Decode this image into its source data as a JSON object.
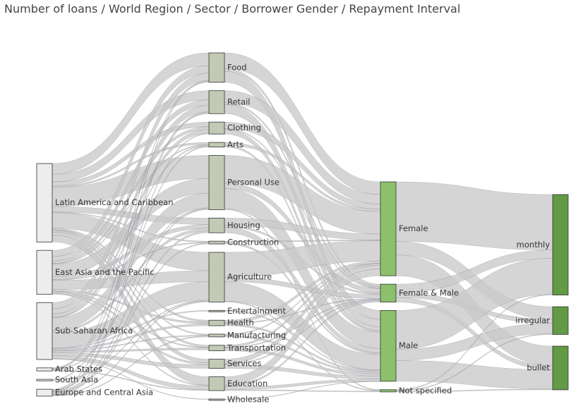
{
  "chart_data": {
    "type": "sankey",
    "title": "Number of loans / World Region / Sector / Borrower Gender / Repayment Interval",
    "colors": {
      "link": "#c9c9c9",
      "node_stroke": "#333333",
      "region_fill": "#ededed",
      "sector_fill": "#c2cab6",
      "gender_fill": "#8cc06c",
      "interval_fill": "#629a45"
    },
    "nodes": [
      {
        "id": "lac",
        "label": "Latin America and Caribbean",
        "level": 0,
        "value": 102
      },
      {
        "id": "eap",
        "label": "East Asia and the Pacific",
        "level": 0,
        "value": 57
      },
      {
        "id": "ssa",
        "label": "Sub-Saharan Africa",
        "level": 0,
        "value": 74
      },
      {
        "id": "arab",
        "label": "Arab States",
        "level": 0,
        "value": 4
      },
      {
        "id": "sa",
        "label": "South Asia",
        "level": 0,
        "value": 2
      },
      {
        "id": "eca",
        "label": "Europe and Central Asia",
        "level": 0,
        "value": 9
      },
      {
        "id": "food",
        "label": "Food",
        "level": 1,
        "value": 32
      },
      {
        "id": "retail",
        "label": "Retail",
        "level": 1,
        "value": 25
      },
      {
        "id": "clothing",
        "label": "Clothing",
        "level": 1,
        "value": 13
      },
      {
        "id": "arts",
        "label": "Arts",
        "level": 1,
        "value": 5
      },
      {
        "id": "personal",
        "label": "Personal Use",
        "level": 1,
        "value": 59
      },
      {
        "id": "housing",
        "label": "Housing",
        "level": 1,
        "value": 16
      },
      {
        "id": "construction",
        "label": "Construction",
        "level": 1,
        "value": 3
      },
      {
        "id": "agriculture",
        "label": "Agriculture",
        "level": 1,
        "value": 54
      },
      {
        "id": "entertainment",
        "label": "Entertainment",
        "level": 1,
        "value": 1
      },
      {
        "id": "health",
        "label": "Health",
        "level": 1,
        "value": 6
      },
      {
        "id": "manufacturing",
        "label": "Manufacturing",
        "level": 1,
        "value": 3
      },
      {
        "id": "transportation",
        "label": "Transportation",
        "level": 1,
        "value": 6
      },
      {
        "id": "services",
        "label": "Services",
        "level": 1,
        "value": 10
      },
      {
        "id": "education",
        "label": "Education",
        "level": 1,
        "value": 15
      },
      {
        "id": "wholesale",
        "label": "Wholesale",
        "level": 1,
        "value": 0.5
      },
      {
        "id": "female",
        "label": "Female",
        "level": 2,
        "value": 126
      },
      {
        "id": "femalemale",
        "label": "Female & Male",
        "level": 2,
        "value": 24
      },
      {
        "id": "male",
        "label": "Male",
        "level": 2,
        "value": 95
      },
      {
        "id": "notspec",
        "label": "Not specified",
        "level": 2,
        "value": 3
      },
      {
        "id": "monthly",
        "label": "monthly",
        "level": 3,
        "value": 145
      },
      {
        "id": "irregular",
        "label": "irregular",
        "level": 3,
        "value": 40
      },
      {
        "id": "bullet",
        "label": "bullet",
        "level": 3,
        "value": 63
      }
    ],
    "links": [
      {
        "source": "lac",
        "target": "food",
        "value": 14
      },
      {
        "source": "lac",
        "target": "retail",
        "value": 10
      },
      {
        "source": "lac",
        "target": "clothing",
        "value": 5
      },
      {
        "source": "lac",
        "target": "arts",
        "value": 2
      },
      {
        "source": "lac",
        "target": "personal",
        "value": 25
      },
      {
        "source": "lac",
        "target": "housing",
        "value": 7
      },
      {
        "source": "lac",
        "target": "construction",
        "value": 1
      },
      {
        "source": "lac",
        "target": "agriculture",
        "value": 20
      },
      {
        "source": "lac",
        "target": "health",
        "value": 2
      },
      {
        "source": "lac",
        "target": "manufacturing",
        "value": 1
      },
      {
        "source": "lac",
        "target": "transportation",
        "value": 2
      },
      {
        "source": "lac",
        "target": "services",
        "value": 4
      },
      {
        "source": "lac",
        "target": "education",
        "value": 9
      },
      {
        "source": "eap",
        "target": "food",
        "value": 8
      },
      {
        "source": "eap",
        "target": "retail",
        "value": 6
      },
      {
        "source": "eap",
        "target": "clothing",
        "value": 3
      },
      {
        "source": "eap",
        "target": "arts",
        "value": 1
      },
      {
        "source": "eap",
        "target": "personal",
        "value": 16
      },
      {
        "source": "eap",
        "target": "housing",
        "value": 4
      },
      {
        "source": "eap",
        "target": "construction",
        "value": 1
      },
      {
        "source": "eap",
        "target": "agriculture",
        "value": 12
      },
      {
        "source": "eap",
        "target": "health",
        "value": 2
      },
      {
        "source": "eap",
        "target": "transportation",
        "value": 1
      },
      {
        "source": "eap",
        "target": "services",
        "value": 2
      },
      {
        "source": "eap",
        "target": "education",
        "value": 1
      },
      {
        "source": "ssa",
        "target": "food",
        "value": 8
      },
      {
        "source": "ssa",
        "target": "retail",
        "value": 7
      },
      {
        "source": "ssa",
        "target": "clothing",
        "value": 4
      },
      {
        "source": "ssa",
        "target": "arts",
        "value": 1
      },
      {
        "source": "ssa",
        "target": "personal",
        "value": 16
      },
      {
        "source": "ssa",
        "target": "housing",
        "value": 3
      },
      {
        "source": "ssa",
        "target": "agriculture",
        "value": 20
      },
      {
        "source": "ssa",
        "target": "entertainment",
        "value": 1
      },
      {
        "source": "ssa",
        "target": "health",
        "value": 2
      },
      {
        "source": "ssa",
        "target": "manufacturing",
        "value": 1
      },
      {
        "source": "ssa",
        "target": "transportation",
        "value": 2
      },
      {
        "source": "ssa",
        "target": "services",
        "value": 4
      },
      {
        "source": "ssa",
        "target": "education",
        "value": 4
      },
      {
        "source": "ssa",
        "target": "wholesale",
        "value": 0.5
      },
      {
        "source": "arab",
        "target": "food",
        "value": 1
      },
      {
        "source": "arab",
        "target": "retail",
        "value": 1
      },
      {
        "source": "arab",
        "target": "personal",
        "value": 1
      },
      {
        "source": "arab",
        "target": "education",
        "value": 1
      },
      {
        "source": "sa",
        "target": "retail",
        "value": 1
      },
      {
        "source": "sa",
        "target": "agriculture",
        "value": 1
      },
      {
        "source": "eca",
        "target": "food",
        "value": 1
      },
      {
        "source": "eca",
        "target": "clothing",
        "value": 1
      },
      {
        "source": "eca",
        "target": "arts",
        "value": 1
      },
      {
        "source": "eca",
        "target": "personal",
        "value": 1
      },
      {
        "source": "eca",
        "target": "housing",
        "value": 2
      },
      {
        "source": "eca",
        "target": "construction",
        "value": 1
      },
      {
        "source": "eca",
        "target": "agriculture",
        "value": 1
      },
      {
        "source": "eca",
        "target": "manufacturing",
        "value": 1
      },
      {
        "source": "food",
        "target": "female",
        "value": 17
      },
      {
        "source": "food",
        "target": "femalemale",
        "value": 3
      },
      {
        "source": "food",
        "target": "male",
        "value": 12
      },
      {
        "source": "retail",
        "target": "female",
        "value": 13
      },
      {
        "source": "retail",
        "target": "femalemale",
        "value": 2
      },
      {
        "source": "retail",
        "target": "male",
        "value": 10
      },
      {
        "source": "clothing",
        "target": "female",
        "value": 7
      },
      {
        "source": "clothing",
        "target": "femalemale",
        "value": 1
      },
      {
        "source": "clothing",
        "target": "male",
        "value": 5
      },
      {
        "source": "arts",
        "target": "female",
        "value": 3
      },
      {
        "source": "arts",
        "target": "male",
        "value": 2
      },
      {
        "source": "personal",
        "target": "female",
        "value": 30
      },
      {
        "source": "personal",
        "target": "femalemale",
        "value": 6
      },
      {
        "source": "personal",
        "target": "male",
        "value": 22
      },
      {
        "source": "personal",
        "target": "notspec",
        "value": 1
      },
      {
        "source": "housing",
        "target": "female",
        "value": 8
      },
      {
        "source": "housing",
        "target": "femalemale",
        "value": 2
      },
      {
        "source": "housing",
        "target": "male",
        "value": 6
      },
      {
        "source": "construction",
        "target": "female",
        "value": 1
      },
      {
        "source": "construction",
        "target": "male",
        "value": 2
      },
      {
        "source": "agriculture",
        "target": "female",
        "value": 27
      },
      {
        "source": "agriculture",
        "target": "femalemale",
        "value": 5
      },
      {
        "source": "agriculture",
        "target": "male",
        "value": 21
      },
      {
        "source": "agriculture",
        "target": "notspec",
        "value": 1
      },
      {
        "source": "entertainment",
        "target": "male",
        "value": 1
      },
      {
        "source": "health",
        "target": "female",
        "value": 3
      },
      {
        "source": "health",
        "target": "femalemale",
        "value": 1
      },
      {
        "source": "health",
        "target": "male",
        "value": 2
      },
      {
        "source": "manufacturing",
        "target": "female",
        "value": 1
      },
      {
        "source": "manufacturing",
        "target": "male",
        "value": 2
      },
      {
        "source": "transportation",
        "target": "female",
        "value": 2
      },
      {
        "source": "transportation",
        "target": "femalemale",
        "value": 1
      },
      {
        "source": "transportation",
        "target": "male",
        "value": 3
      },
      {
        "source": "services",
        "target": "female",
        "value": 5
      },
      {
        "source": "services",
        "target": "femalemale",
        "value": 1
      },
      {
        "source": "services",
        "target": "male",
        "value": 4
      },
      {
        "source": "education",
        "target": "female",
        "value": 9
      },
      {
        "source": "education",
        "target": "femalemale",
        "value": 2
      },
      {
        "source": "education",
        "target": "male",
        "value": 3
      },
      {
        "source": "education",
        "target": "notspec",
        "value": 1
      },
      {
        "source": "wholesale",
        "target": "male",
        "value": 0.5
      },
      {
        "source": "female",
        "target": "monthly",
        "value": 80
      },
      {
        "source": "female",
        "target": "irregular",
        "value": 18
      },
      {
        "source": "female",
        "target": "bullet",
        "value": 28
      },
      {
        "source": "femalemale",
        "target": "monthly",
        "value": 12
      },
      {
        "source": "femalemale",
        "target": "irregular",
        "value": 6
      },
      {
        "source": "femalemale",
        "target": "bullet",
        "value": 6
      },
      {
        "source": "male",
        "target": "monthly",
        "value": 52
      },
      {
        "source": "male",
        "target": "irregular",
        "value": 15
      },
      {
        "source": "male",
        "target": "bullet",
        "value": 28
      },
      {
        "source": "notspec",
        "target": "monthly",
        "value": 1
      },
      {
        "source": "notspec",
        "target": "irregular",
        "value": 1
      },
      {
        "source": "notspec",
        "target": "bullet",
        "value": 1
      }
    ]
  }
}
